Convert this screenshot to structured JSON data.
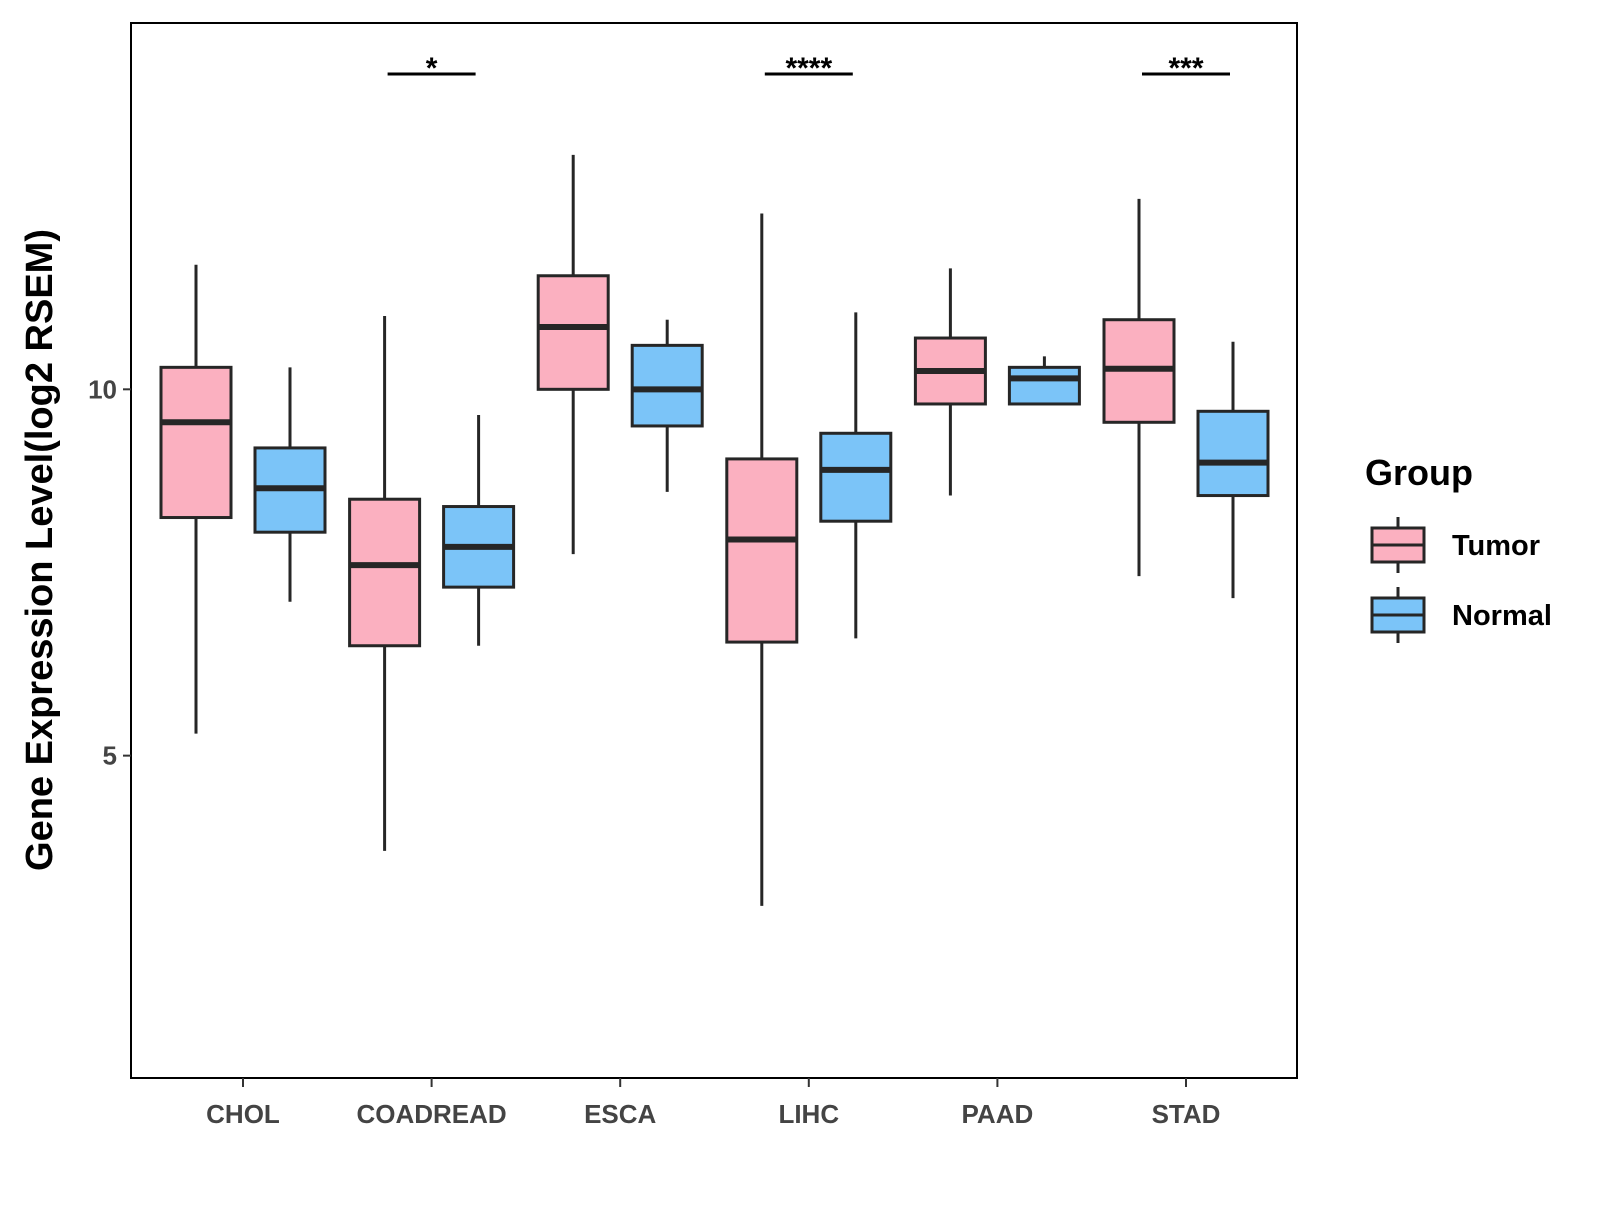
{
  "chart_data": {
    "type": "box",
    "ylabel": "Gene Expression Level(log2 RSEM)",
    "xlabel": "",
    "categories": [
      "CHOL",
      "COADREAD",
      "ESCA",
      "LIHC",
      "PAAD",
      "STAD"
    ],
    "ylim": [
      0.6,
      15
    ],
    "yticks": [
      5,
      10
    ],
    "grid": false,
    "legend": {
      "title": "Group",
      "position": "right",
      "items": [
        {
          "label": "Tumor",
          "color": "#FBB0C0"
        },
        {
          "label": "Normal",
          "color": "#7BC4F8"
        }
      ]
    },
    "series": [
      {
        "name": "Tumor",
        "color": "#FBB0C0",
        "boxes": [
          {
            "min": 5.3,
            "q1": 8.25,
            "median": 9.55,
            "q3": 10.3,
            "max": 11.7
          },
          {
            "min": 3.7,
            "q1": 6.5,
            "median": 7.6,
            "q3": 8.5,
            "max": 11.0
          },
          {
            "min": 7.75,
            "q1": 10.0,
            "median": 10.85,
            "q3": 11.55,
            "max": 13.2
          },
          {
            "min": 2.95,
            "q1": 6.55,
            "median": 7.95,
            "q3": 9.05,
            "max": 12.4
          },
          {
            "min": 8.55,
            "q1": 9.8,
            "median": 10.25,
            "q3": 10.7,
            "max": 11.65
          },
          {
            "min": 7.45,
            "q1": 9.55,
            "median": 10.28,
            "q3": 10.95,
            "max": 12.6
          }
        ]
      },
      {
        "name": "Normal",
        "color": "#7BC4F8",
        "boxes": [
          {
            "min": 7.1,
            "q1": 8.05,
            "median": 8.65,
            "q3": 9.2,
            "max": 10.3
          },
          {
            "min": 6.5,
            "q1": 7.3,
            "median": 7.85,
            "q3": 8.4,
            "max": 9.65
          },
          {
            "min": 8.6,
            "q1": 9.5,
            "median": 10.0,
            "q3": 10.6,
            "max": 10.95
          },
          {
            "min": 6.6,
            "q1": 8.2,
            "median": 8.9,
            "q3": 9.4,
            "max": 11.05
          },
          {
            "min": 9.8,
            "q1": 9.8,
            "median": 10.15,
            "q3": 10.3,
            "max": 10.45
          },
          {
            "min": 7.15,
            "q1": 8.55,
            "median": 9.0,
            "q3": 9.7,
            "max": 10.65
          }
        ]
      }
    ],
    "significance": [
      {
        "category": "COADREAD",
        "label": "*"
      },
      {
        "category": "LIHC",
        "label": "****"
      },
      {
        "category": "STAD",
        "label": "***"
      }
    ]
  }
}
